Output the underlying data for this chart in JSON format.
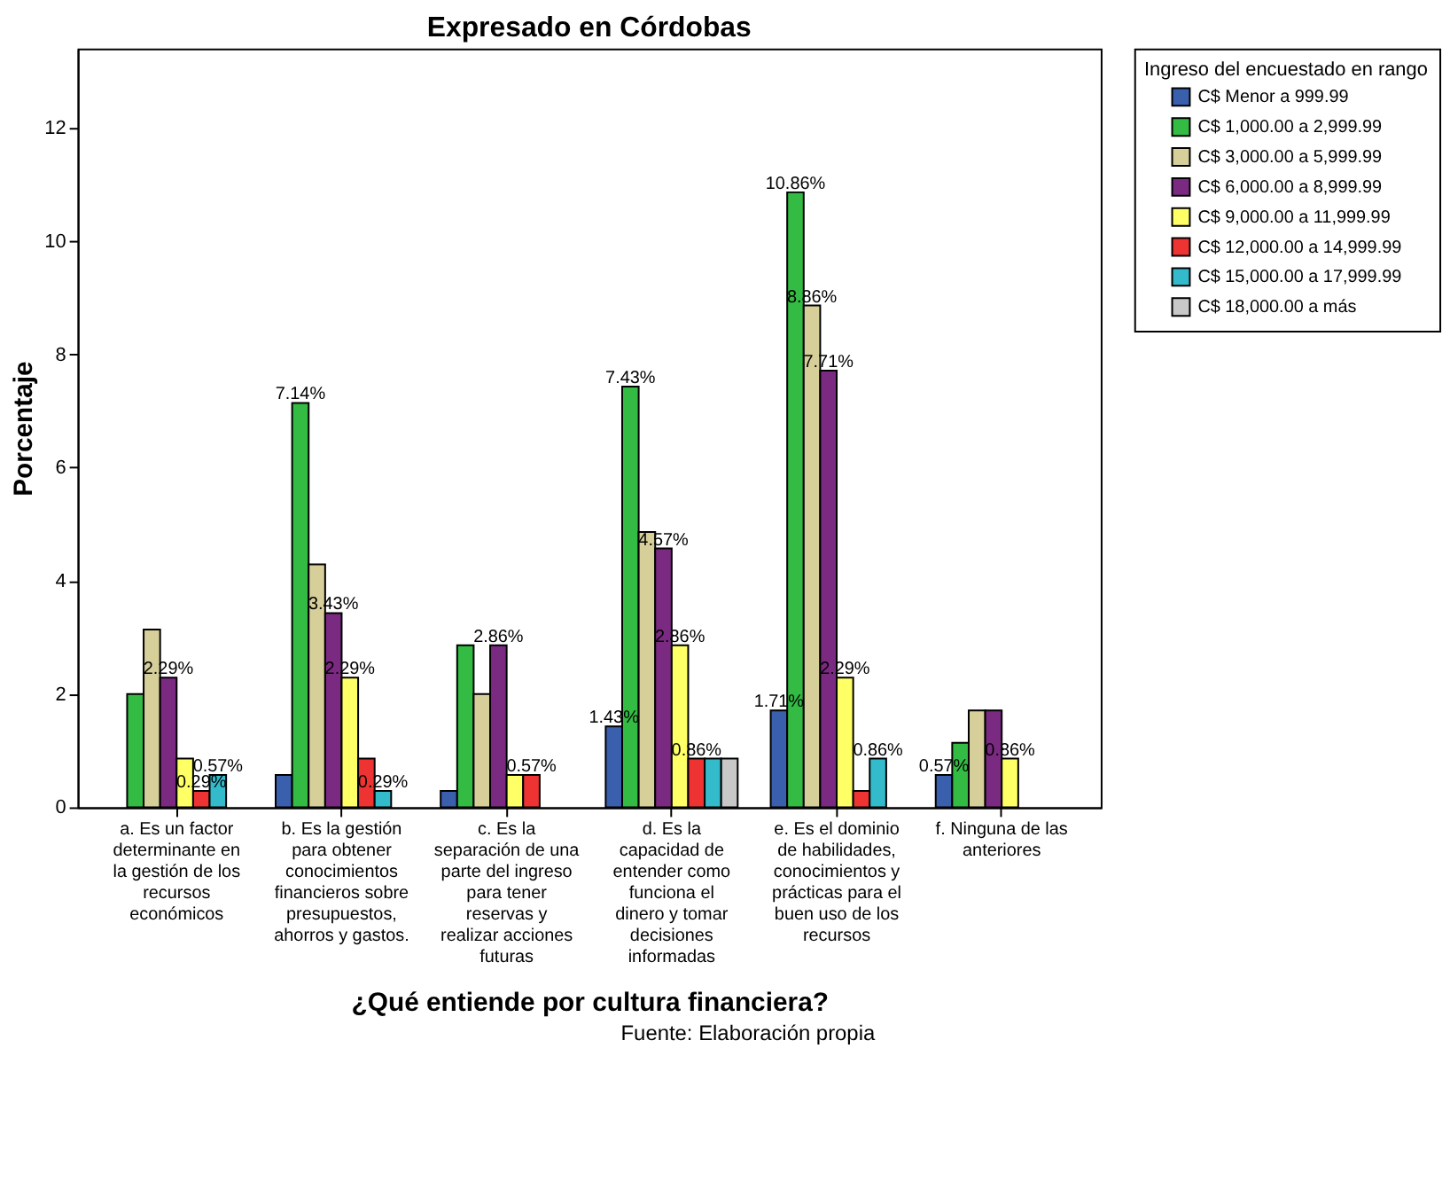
{
  "chart_data": {
    "type": "bar",
    "title": "Expresado en Córdobas",
    "xlabel": "¿Qué entiende por cultura financiera?",
    "ylabel": "Porcentaje",
    "legend_title": "Ingreso del encuestado en rango",
    "categories": [
      "a. Es un factor determinante en la gestión de los recursos económicos",
      "b. Es la gestión para obtener conocimientos financieros sobre presupuestos, ahorros y gastos.",
      "c. Es la separación de una parte del ingreso para tener reservas y realizar acciones futuras",
      "d. Es la capacidad de entender como funciona el dinero y tomar decisiones informadas",
      "e. Es el dominio de habilidades, conocimientos y prácticas para el buen uso de los recursos",
      "f. Ninguna de las anteriores"
    ],
    "series": [
      {
        "name": "C$ Menor a 999.99",
        "color": "#3a5fad",
        "values": [
          0,
          0.57,
          0.29,
          1.43,
          1.71,
          0.57
        ],
        "value_labels": [
          null,
          null,
          null,
          "1.43%",
          "1.71%",
          "0.57%"
        ]
      },
      {
        "name": "C$ 1,000.00 a 2,999.99",
        "color": "#33bb44",
        "values": [
          2.0,
          7.14,
          2.86,
          7.43,
          10.86,
          1.14
        ],
        "value_labels": [
          null,
          "7.14%",
          null,
          "7.43%",
          "10.86%",
          null
        ]
      },
      {
        "name": "C$ 3,000.00 a 5,999.99",
        "color": "#d6cf9a",
        "values": [
          3.14,
          4.29,
          2.0,
          4.86,
          8.86,
          1.71
        ],
        "value_labels": [
          null,
          null,
          null,
          null,
          "8.86%",
          null
        ]
      },
      {
        "name": "C$ 6,000.00 a 8,999.99",
        "color": "#7b2a82",
        "values": [
          2.29,
          3.43,
          2.86,
          4.57,
          7.71,
          1.71
        ],
        "value_labels": [
          "2.29%",
          "3.43%",
          "2.86%",
          "4.57%",
          "7.71%",
          null
        ]
      },
      {
        "name": "C$ 9,000.00 a 11,999.99",
        "color": "#ffff66",
        "values": [
          0.86,
          2.29,
          0.57,
          2.86,
          2.29,
          0.86
        ],
        "value_labels": [
          null,
          "2.29%",
          null,
          "2.86%",
          "2.29%",
          "0.86%"
        ]
      },
      {
        "name": "C$ 12,000.00 a 14,999.99",
        "color": "#ee3333",
        "values": [
          0.29,
          0.86,
          0.57,
          0.86,
          0.29,
          0
        ],
        "value_labels": [
          "0.29%",
          null,
          "0.57%",
          "0.86%",
          null,
          null
        ]
      },
      {
        "name": "C$ 15,000.00 a 17,999.99",
        "color": "#33bbcc",
        "values": [
          0.57,
          0.29,
          0,
          0.86,
          0.86,
          0
        ],
        "value_labels": [
          "0.57%",
          "0.29%",
          null,
          null,
          "0.86%",
          null
        ]
      },
      {
        "name": "C$ 18,000.00 a más",
        "color": "#c8c8c8",
        "values": [
          0,
          0,
          0,
          0.86,
          0,
          0
        ],
        "value_labels": [
          null,
          null,
          null,
          null,
          null,
          null
        ]
      }
    ],
    "ylim": [
      0,
      13.4
    ],
    "yticks": [
      0,
      2,
      4,
      6,
      8,
      10,
      12
    ],
    "grid": false,
    "legend": "right",
    "annotations": [
      "Fuente: Elaboración propia"
    ]
  }
}
